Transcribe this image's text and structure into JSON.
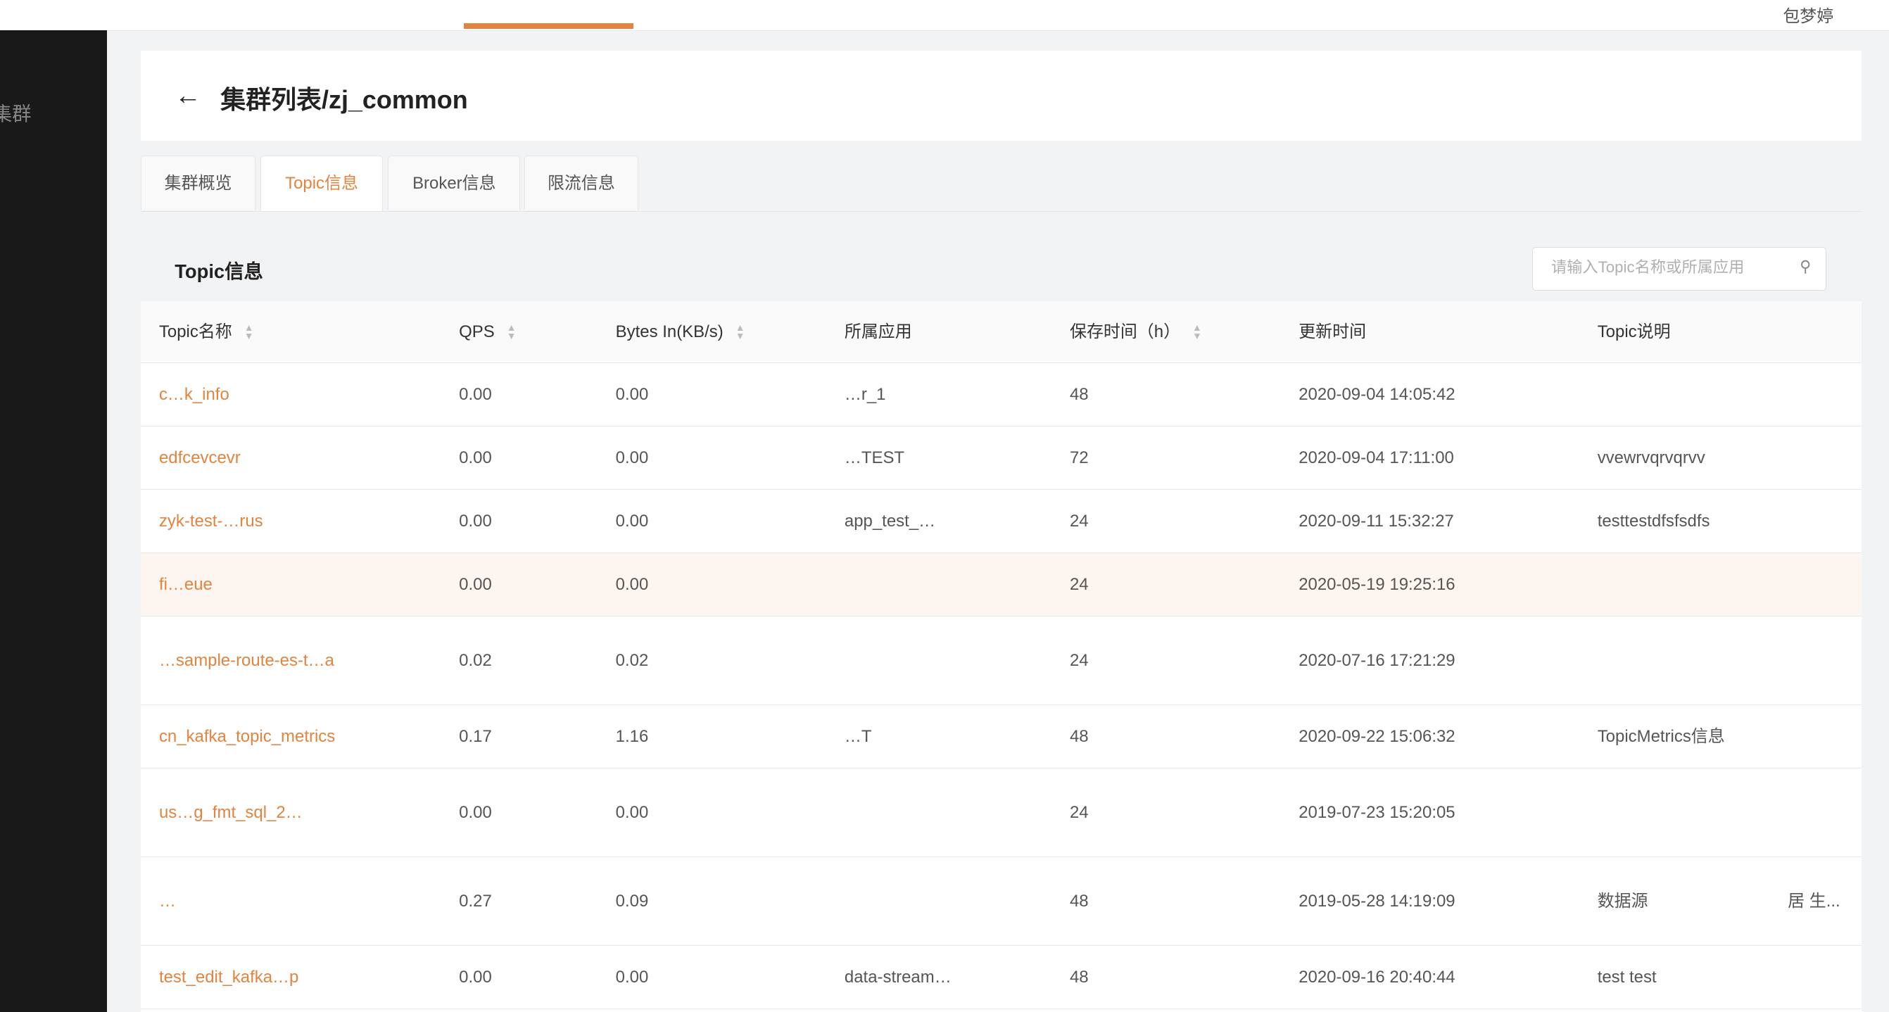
{
  "header": {
    "user": "包梦婷"
  },
  "sidebar": {
    "item": "集群"
  },
  "page": {
    "title": "集群列表/zj_common",
    "back_icon": "arrow-left-icon"
  },
  "tabs": [
    {
      "label": "集群概览"
    },
    {
      "label": "Topic信息",
      "active": true
    },
    {
      "label": "Broker信息"
    },
    {
      "label": "限流信息"
    }
  ],
  "panel": {
    "title": "Topic信息",
    "search_placeholder": "请输入Topic名称或所属应用",
    "search_value": ""
  },
  "table": {
    "columns": [
      "Topic名称",
      "QPS",
      "Bytes In(KB/s)",
      "所属应用",
      "保存时间（h）",
      "更新时间",
      "Topic说明"
    ],
    "rows": [
      {
        "name": "c…k_info",
        "qps": "0.00",
        "bytes": "0.00",
        "app": "…r_1",
        "retention": "48",
        "updated": "2020-09-04 14:05:42",
        "desc": "",
        "extra": ""
      },
      {
        "name": "edfcevcevr",
        "qps": "0.00",
        "bytes": "0.00",
        "app": "…TEST",
        "retention": "72",
        "updated": "2020-09-04 17:11:00",
        "desc": "vvewrvqrvqrvv",
        "extra": ""
      },
      {
        "name": "zyk-test-…rus",
        "qps": "0.00",
        "bytes": "0.00",
        "app": "app_test_…",
        "retention": "24",
        "updated": "2020-09-11 15:32:27",
        "desc": "testtestdfsfsdfs",
        "extra": ""
      },
      {
        "name": "fi…eue",
        "qps": "0.00",
        "bytes": "0.00",
        "app": "",
        "retention": "24",
        "updated": "2020-05-19 19:25:16",
        "desc": "",
        "extra": "",
        "highlight": true
      },
      {
        "name": "…sample-route-es-t…a",
        "qps": "0.02",
        "bytes": "0.02",
        "app": "",
        "retention": "24",
        "updated": "2020-07-16 17:21:29",
        "desc": "",
        "extra": ""
      },
      {
        "name": "cn_kafka_topic_metrics",
        "qps": "0.17",
        "bytes": "1.16",
        "app": "…T",
        "retention": "48",
        "updated": "2020-09-22 15:06:32",
        "desc": "TopicMetrics信息",
        "extra": ""
      },
      {
        "name": "us…g_fmt_sql_2…",
        "qps": "0.00",
        "bytes": "0.00",
        "app": "",
        "retention": "24",
        "updated": "2019-07-23 15:20:05",
        "desc": "",
        "extra": ""
      },
      {
        "name": "…",
        "qps": "0.27",
        "bytes": "0.09",
        "app": "",
        "retention": "48",
        "updated": "2019-05-28 14:19:09",
        "desc": "数据源",
        "extra": "居 生..."
      },
      {
        "name": "test_edit_kafka…p",
        "qps": "0.00",
        "bytes": "0.00",
        "app": "data-stream…",
        "retention": "48",
        "updated": "2020-09-16 20:40:44",
        "desc": "test test",
        "extra": ""
      }
    ]
  },
  "colors": {
    "accent": "#e2843f",
    "sidebar": "#191919",
    "highlight_row": "#fdf6f0"
  }
}
